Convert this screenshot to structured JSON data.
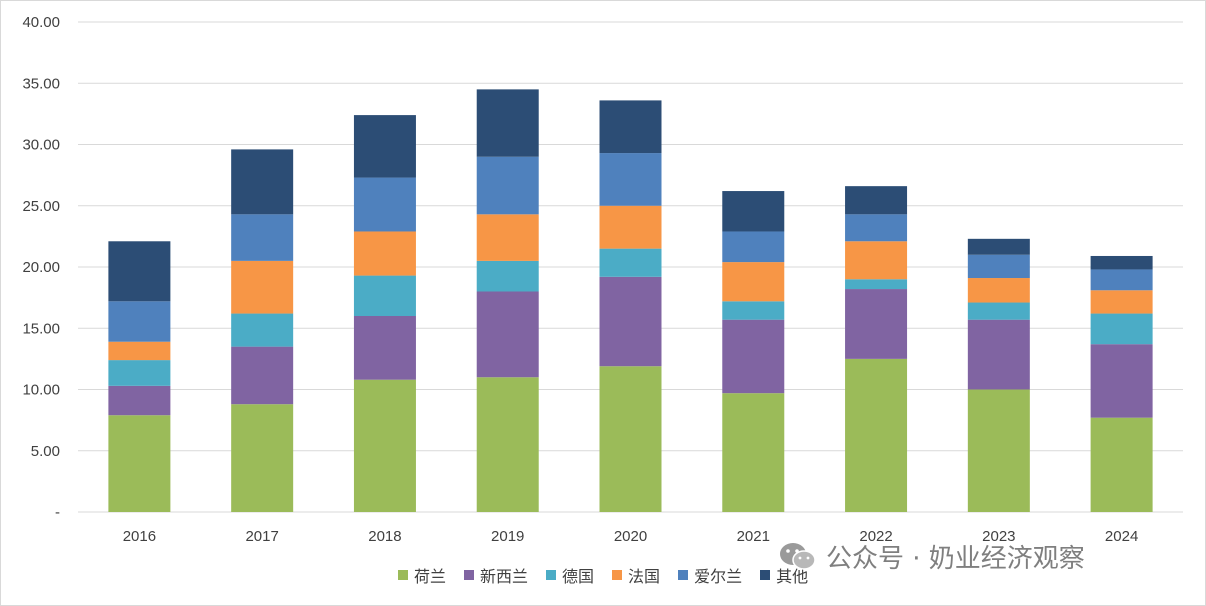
{
  "chart_data": {
    "type": "bar",
    "stacked": true,
    "categories": [
      "2016",
      "2017",
      "2018",
      "2019",
      "2020",
      "2021",
      "2022",
      "2023",
      "2024"
    ],
    "series": [
      {
        "name": "荷兰",
        "color": "#9BBB59",
        "values": [
          7.9,
          8.8,
          10.8,
          11.0,
          11.9,
          9.7,
          12.5,
          10.0,
          7.7
        ]
      },
      {
        "name": "新西兰",
        "color": "#8064A2",
        "values": [
          2.4,
          4.7,
          5.2,
          7.0,
          7.3,
          6.0,
          5.7,
          5.7,
          6.0
        ]
      },
      {
        "name": "德国",
        "color": "#4BACC6",
        "values": [
          2.1,
          2.7,
          3.3,
          2.5,
          2.3,
          1.5,
          0.8,
          1.4,
          2.5
        ]
      },
      {
        "name": "法国",
        "color": "#F79646",
        "values": [
          1.5,
          4.3,
          3.6,
          3.8,
          3.5,
          3.2,
          3.1,
          2.0,
          1.9
        ]
      },
      {
        "name": "爱尔兰",
        "color": "#4F81BD",
        "values": [
          3.3,
          3.8,
          4.4,
          4.7,
          4.3,
          2.5,
          2.2,
          1.9,
          1.7
        ]
      },
      {
        "name": "其他",
        "color": "#2C4D75",
        "values": [
          4.9,
          5.3,
          5.1,
          5.5,
          4.3,
          3.3,
          2.3,
          1.3,
          1.1
        ]
      }
    ],
    "ylim": [
      0,
      40
    ],
    "yticks": [
      "-",
      "5.00",
      "10.00",
      "15.00",
      "20.00",
      "25.00",
      "30.00",
      "35.00",
      "40.00"
    ],
    "ytick_values": [
      0,
      5,
      10,
      15,
      20,
      25,
      30,
      35,
      40
    ],
    "grid": true,
    "legend_position": "bottom",
    "title": "",
    "xlabel": "",
    "ylabel": ""
  },
  "watermark": {
    "text": "公众号 · 奶业经济观察",
    "icon": "wechat-icon"
  }
}
